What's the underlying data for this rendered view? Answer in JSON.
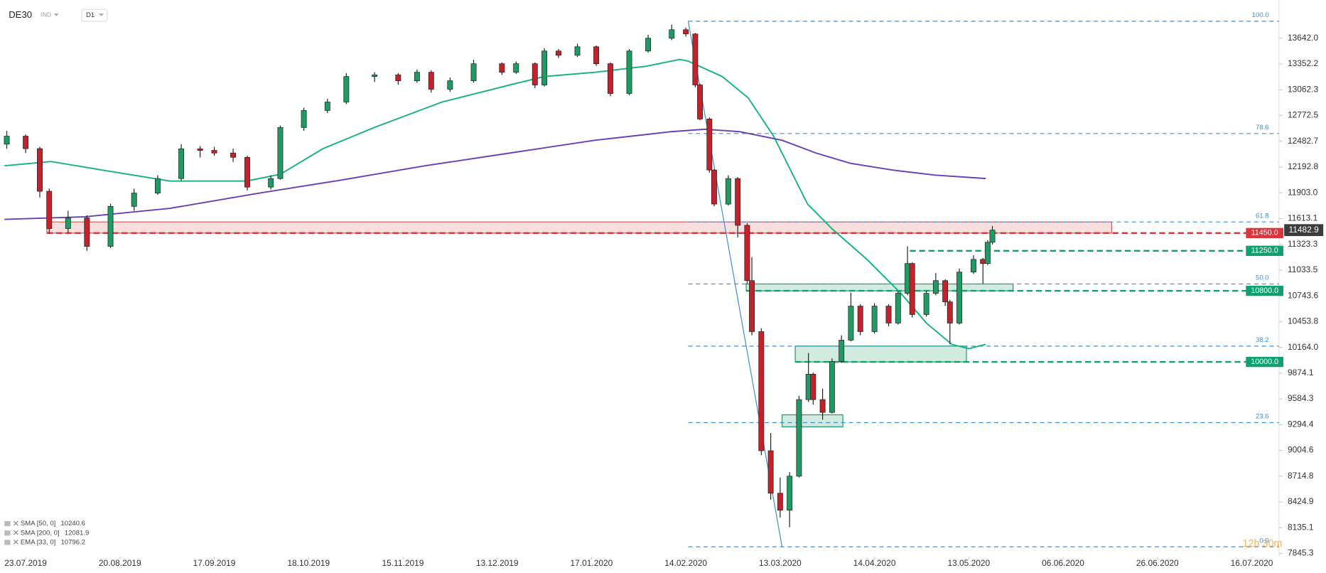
{
  "chart_data": {
    "type": "candlestick",
    "symbol": "DE30",
    "market": "IND",
    "interval": "D1",
    "timer": "12h 30m",
    "up_color": "#1f9a63",
    "down_color": "#c4212b",
    "xlim": [
      -5.4,
      265.8
    ],
    "ylim": [
      7807,
      14072
    ],
    "xticks": [
      {
        "value": 0,
        "label": "23.07.2019"
      },
      {
        "value": 20,
        "label": "20.08.2019"
      },
      {
        "value": 40,
        "label": "17.09.2019"
      },
      {
        "value": 60,
        "label": "18.10.2019"
      },
      {
        "value": 80,
        "label": "15.11.2019"
      },
      {
        "value": 100,
        "label": "13.12.2019"
      },
      {
        "value": 120,
        "label": "17.01.2020"
      },
      {
        "value": 140,
        "label": "14.02.2020"
      },
      {
        "value": 160,
        "label": "13.03.2020"
      },
      {
        "value": 180,
        "label": "14.04.2020"
      },
      {
        "value": 200,
        "label": "13.05.2020"
      },
      {
        "value": 220,
        "label": "06.06.2020"
      },
      {
        "value": 240,
        "label": "26.06.2020"
      },
      {
        "value": 260,
        "label": "16.07.2020"
      }
    ],
    "yticks": [
      {
        "value": 13642,
        "label": "13642.0"
      },
      {
        "value": 13352.2,
        "label": "13352.2"
      },
      {
        "value": 13062.3,
        "label": "13062.3"
      },
      {
        "value": 12772.5,
        "label": "12772.5"
      },
      {
        "value": 12482.7,
        "label": "12482.7"
      },
      {
        "value": 12192.8,
        "label": "12192.8"
      },
      {
        "value": 11903,
        "label": "11903.0"
      },
      {
        "value": 11613.1,
        "label": "11613.1"
      },
      {
        "value": 11323.3,
        "label": "11323.3"
      },
      {
        "value": 11033.5,
        "label": "11033.5"
      },
      {
        "value": 10743.6,
        "label": "10743.6"
      },
      {
        "value": 10453.8,
        "label": "10453.8"
      },
      {
        "value": 10164,
        "label": "10164.0"
      },
      {
        "value": 9874.1,
        "label": "9874.1"
      },
      {
        "value": 9584.3,
        "label": "9584.3"
      },
      {
        "value": 9294.4,
        "label": "9294.4"
      },
      {
        "value": 9004.6,
        "label": "9004.6"
      },
      {
        "value": 8714.8,
        "label": "8714.8"
      },
      {
        "value": 8424.9,
        "label": "8424.9"
      },
      {
        "value": 8135.1,
        "label": "8135.1"
      },
      {
        "value": 7845.3,
        "label": "7845.3"
      }
    ],
    "candles": {
      "x": [
        -4,
        0,
        3,
        5,
        9,
        13,
        18,
        23,
        28,
        33,
        37,
        40,
        44,
        47,
        52,
        54,
        59,
        64,
        68,
        74,
        79,
        83,
        86,
        90,
        95,
        101,
        104,
        108,
        110,
        113,
        117,
        121,
        124,
        128,
        132,
        137,
        140,
        142,
        143,
        145,
        146,
        149,
        151,
        153,
        154,
        156,
        158,
        160,
        162,
        164,
        166,
        167,
        169,
        171,
        173,
        175,
        177,
        180,
        183,
        185,
        187,
        188,
        191,
        193,
        195,
        196,
        198,
        201,
        203,
        204,
        205
      ],
      "open": [
        12450,
        12540,
        12400,
        11920,
        11500,
        11620,
        11300,
        11750,
        11900,
        12063,
        12398,
        12380,
        12350,
        12302,
        11967,
        12063,
        12637,
        12829,
        12924,
        13211,
        13230,
        13163,
        13259,
        13068,
        13163,
        13355,
        13259,
        13355,
        13116,
        13498,
        13450,
        13546,
        13355,
        13020,
        13498,
        13642,
        13738,
        13690,
        13116,
        12733,
        12159,
        11776,
        12063,
        11537,
        10915,
        10341,
        9001,
        8523,
        8332,
        8715,
        9576,
        9862,
        9576,
        9432,
        10006,
        10245,
        10628,
        10341,
        10628,
        10437,
        10772,
        11107,
        10533,
        10772,
        10915,
        10676,
        10437,
        11011,
        11154,
        11107,
        11346
      ],
      "high": [
        12600,
        12560,
        12420,
        11950,
        11700,
        11650,
        11780,
        11950,
        12100,
        12450,
        12430,
        12420,
        12400,
        12320,
        12100,
        12660,
        12860,
        12960,
        13250,
        13260,
        13250,
        13290,
        13280,
        13200,
        13400,
        13370,
        13380,
        13370,
        13530,
        13520,
        13580,
        13560,
        13370,
        13520,
        13680,
        13795,
        13760,
        13700,
        13130,
        12750,
        12170,
        12100,
        12080,
        11560,
        11180,
        10380,
        9200,
        8700,
        8760,
        9620,
        10100,
        9880,
        9700,
        10040,
        10300,
        10780,
        10650,
        10660,
        10650,
        10800,
        11300,
        11120,
        10800,
        11000,
        10930,
        10700,
        11050,
        11200,
        11170,
        11370,
        11530
      ],
      "low": [
        12400,
        12350,
        11850,
        11450,
        11450,
        11250,
        11280,
        11700,
        11880,
        12040,
        12300,
        12320,
        12250,
        11930,
        11940,
        12050,
        12600,
        12800,
        12900,
        13150,
        13120,
        13140,
        13030,
        13040,
        13140,
        13230,
        13240,
        13080,
        13100,
        13420,
        13430,
        13330,
        12990,
        13000,
        13480,
        13620,
        13660,
        13090,
        12720,
        12130,
        11750,
        11760,
        11400,
        10880,
        10300,
        8950,
        8450,
        8250,
        8140,
        8700,
        9550,
        9520,
        9350,
        9420,
        9990,
        10230,
        10300,
        10320,
        10400,
        10420,
        10750,
        10500,
        10510,
        10750,
        10630,
        10200,
        10420,
        10990,
        10880,
        11090,
        11320
      ],
      "close": [
        12540,
        12400,
        11920,
        11500,
        11620,
        11300,
        11750,
        11900,
        12063,
        12398,
        12380,
        12350,
        12302,
        11967,
        12063,
        12637,
        12829,
        12924,
        13211,
        13230,
        13163,
        13259,
        13068,
        13163,
        13355,
        13259,
        13355,
        13116,
        13498,
        13450,
        13546,
        13355,
        13020,
        13498,
        13642,
        13738,
        13690,
        13116,
        12733,
        12159,
        11776,
        12063,
        11537,
        10915,
        10341,
        9001,
        8523,
        8332,
        8715,
        9576,
        9862,
        9576,
        9432,
        10006,
        10245,
        10628,
        10341,
        10628,
        10437,
        10772,
        11107,
        10533,
        10772,
        10915,
        10676,
        10437,
        11011,
        11154,
        11107,
        11346,
        11482.9
      ]
    },
    "current_price": 11482.9,
    "indicators": [
      {
        "name": "SMA [50, 0]",
        "last": 10240.6,
        "color": "#14b37d",
        "x": [
          -4.5,
          5.4,
          16.2,
          30.6,
          46.8,
          54,
          63,
          73.9,
          88.3,
          102.7,
          110,
          120.7,
          131.5,
          138.7,
          140.5,
          147.7,
          153.2,
          158.6,
          162.2,
          165.8,
          171.2,
          178.4,
          185.6,
          191,
          196.4,
          200,
          203.6
        ],
        "values": [
          12207,
          12255,
          12159,
          12035,
          12035,
          12111,
          12398,
          12637,
          12924,
          13116,
          13211,
          13259,
          13326,
          13403,
          13384,
          13211,
          12972,
          12542,
          12159,
          11776,
          11489,
          11154,
          10772,
          10437,
          10197,
          10149,
          10197
        ]
      },
      {
        "name": "SMA [200, 0]",
        "last": 12081.9,
        "color": "#6a3fb5",
        "x": [
          -4.5,
          12.6,
          30.6,
          48.6,
          66.7,
          84.7,
          102.7,
          120.7,
          136.9,
          144.1,
          151.4,
          160.4,
          167.6,
          174.8,
          183.8,
          192.8,
          203.6
        ],
        "values": [
          11604,
          11633,
          11728,
          11891,
          12044,
          12207,
          12350,
          12494,
          12590,
          12618,
          12590,
          12494,
          12350,
          12236,
          12159,
          12102,
          12063
        ]
      },
      {
        "name": "EMA [33, 0]",
        "last": 10796.2,
        "color": "#3a8fd9"
      }
    ],
    "zones": [
      {
        "low": 11450,
        "high": 11575,
        "x_start": 4.5,
        "x_end": 230.3,
        "color": "#e05a5a"
      },
      {
        "low": 10800,
        "high": 10877,
        "x_start": 152.8,
        "x_end": 209.4,
        "color": "#1f9a63"
      },
      {
        "low": 10000,
        "high": 10178,
        "x_start": 163.2,
        "x_end": 199.5,
        "color": "#1f9a63"
      },
      {
        "low": 9270,
        "high": 9405,
        "x_start": 160.4,
        "x_end": 173.3,
        "color": "#1f9a63"
      }
    ],
    "levels": [
      {
        "value": 11450,
        "label": "11450.0",
        "color": "#d9353d",
        "x_start": 4.5
      },
      {
        "value": 11250,
        "label": "11250.0",
        "color": "#10a070",
        "x_start": 187.5
      },
      {
        "value": 10800,
        "label": "10800.0",
        "color": "#10a070",
        "x_start": 152.8
      },
      {
        "value": 10000,
        "label": "10000.0",
        "color": "#10a070",
        "x_start": 163.2
      }
    ],
    "fibonacci": {
      "color": "#3a8fd9",
      "x_start": 140.5,
      "x_end": 160.4,
      "levels": [
        {
          "ratio_label": "100.0",
          "price": 13833
        },
        {
          "ratio_label": "78.6",
          "price": 12570
        },
        {
          "ratio_label": "61.8",
          "price": 11575
        },
        {
          "ratio_label": "50.0",
          "price": 10877
        },
        {
          "ratio_label": "38.2",
          "price": 10178
        },
        {
          "ratio_label": "23.6",
          "price": 9317
        },
        {
          "ratio_label": "0.0",
          "price": 7920
        }
      ]
    }
  }
}
